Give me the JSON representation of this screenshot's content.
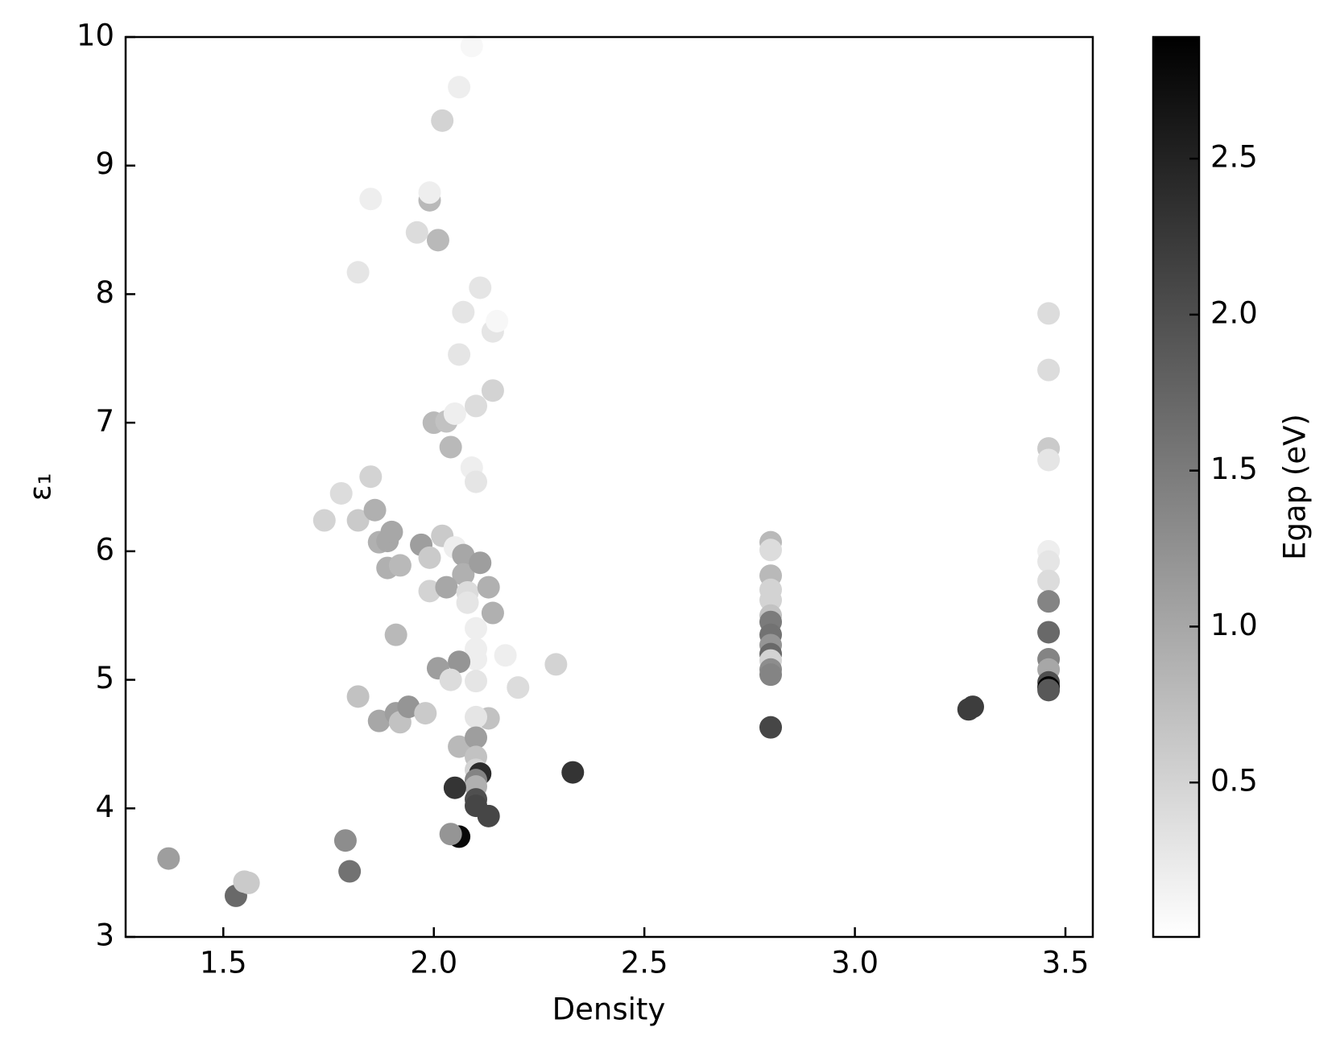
{
  "chart_data": {
    "type": "scatter",
    "xlabel": "Density",
    "ylabel": "ε₁",
    "colorbar_label": "Egap (eV)",
    "xlim": [
      1.268,
      3.565
    ],
    "ylim": [
      3,
      10
    ],
    "xticks": [
      1.5,
      {
        "value": 2,
        "label": "2.0"
      },
      2.5,
      {
        "value": 3,
        "label": "3.0"
      },
      3.5
    ],
    "yticks": [
      3,
      4,
      5,
      6,
      7,
      8,
      9,
      10
    ],
    "clim": [
      0.005,
      2.89
    ],
    "cticks": [
      0.5,
      {
        "value": 1,
        "label": "1.0"
      },
      1.5,
      {
        "value": 2,
        "label": "2.0"
      },
      2.5
    ],
    "colormap": "gray_r",
    "x": [
      1.37,
      1.53,
      1.55,
      1.56,
      1.79,
      1.8,
      1.74,
      1.78,
      1.82,
      1.82,
      1.85,
      1.85,
      1.86,
      1.87,
      1.89,
      1.9,
      1.89,
      1.92,
      1.91,
      1.82,
      1.87,
      1.91,
      1.92,
      1.94,
      1.97,
      1.99,
      1.96,
      1.99,
      1.99,
      2.01,
      2.02,
      2.06,
      2.09,
      2.0,
      2.03,
      2.05,
      2.04,
      2.06,
      2.07,
      2.1,
      2.11,
      2.14,
      2.15,
      2.14,
      2.09,
      2.1,
      2.02,
      2.05,
      2.07,
      2.07,
      2.11,
      1.99,
      2.03,
      2.08,
      2.08,
      2.13,
      2.14,
      2.1,
      2.1,
      2.1,
      2.17,
      2.06,
      2.01,
      2.04,
      2.1,
      2.2,
      2.29,
      1.98,
      2.13,
      2.1,
      2.06,
      2.1,
      2.1,
      2.1,
      2.11,
      2.1,
      2.1,
      2.1,
      2.1,
      2.05,
      2.13,
      2.06,
      2.04,
      2.33,
      2.8,
      2.8,
      2.8,
      2.8,
      2.8,
      2.8,
      2.8,
      2.8,
      2.8,
      2.8,
      2.8,
      2.8,
      2.8,
      2.8,
      3.27,
      3.28,
      3.46,
      3.46,
      3.46,
      3.46,
      3.46,
      3.46,
      3.46,
      3.46,
      3.46,
      3.46,
      3.46,
      3.46,
      3.46,
      3.46
    ],
    "values": [
      3.61,
      3.32,
      3.43,
      3.42,
      3.75,
      3.51,
      6.24,
      6.45,
      6.24,
      8.17,
      8.74,
      6.58,
      6.32,
      6.07,
      6.08,
      6.15,
      5.87,
      5.89,
      5.35,
      4.87,
      4.68,
      4.74,
      4.67,
      4.79,
      6.05,
      5.95,
      8.48,
      8.73,
      8.79,
      8.42,
      9.35,
      9.61,
      9.93,
      7.0,
      7.01,
      7.07,
      6.81,
      7.53,
      7.86,
      7.13,
      8.05,
      7.71,
      7.79,
      7.25,
      6.65,
      6.54,
      6.12,
      6.03,
      5.97,
      5.82,
      5.91,
      5.69,
      5.72,
      5.68,
      5.6,
      5.72,
      5.52,
      5.4,
      5.24,
      5.16,
      5.19,
      5.14,
      5.09,
      5.0,
      4.99,
      4.94,
      5.12,
      4.74,
      4.7,
      4.71,
      4.48,
      4.55,
      4.4,
      4.3,
      4.27,
      4.22,
      4.17,
      4.07,
      4.02,
      4.16,
      3.94,
      3.78,
      3.8,
      4.28,
      6.07,
      6.01,
      5.81,
      5.7,
      5.62,
      5.5,
      5.45,
      5.35,
      5.27,
      5.2,
      5.15,
      5.08,
      5.04,
      4.63,
      4.77,
      4.79,
      7.85,
      7.41,
      6.8,
      6.71,
      6.0,
      5.92,
      5.77,
      5.61,
      5.37,
      5.16,
      5.08,
      4.98,
      4.94,
      4.92
    ],
    "c": [
      1.1,
      1.7,
      0.6,
      0.6,
      1.3,
      1.6,
      0.5,
      0.4,
      0.6,
      0.3,
      0.2,
      0.5,
      0.9,
      0.9,
      1.0,
      1.0,
      0.9,
      0.8,
      0.8,
      0.7,
      1.0,
      1.1,
      0.7,
      1.2,
      1.1,
      0.6,
      0.4,
      0.8,
      0.2,
      0.8,
      0.5,
      0.2,
      0.1,
      0.8,
      0.7,
      0.2,
      0.8,
      0.3,
      0.3,
      0.4,
      0.3,
      0.3,
      0.1,
      0.5,
      0.2,
      0.3,
      0.6,
      0.2,
      1.0,
      0.9,
      1.1,
      0.5,
      1.0,
      0.4,
      0.3,
      0.9,
      0.9,
      0.2,
      0.2,
      0.2,
      0.2,
      1.2,
      1.1,
      0.4,
      0.3,
      0.4,
      0.5,
      0.6,
      0.7,
      0.3,
      0.8,
      1.1,
      0.7,
      0.5,
      2.4,
      1.4,
      0.9,
      2.0,
      2.1,
      2.3,
      2.1,
      2.8,
      1.2,
      2.3,
      0.8,
      0.4,
      0.8,
      0.5,
      0.5,
      0.7,
      1.5,
      1.6,
      1.2,
      1.7,
      0.5,
      1.3,
      1.4,
      2.1,
      2.2,
      2.2,
      0.4,
      0.4,
      0.6,
      0.3,
      0.2,
      0.3,
      0.4,
      1.4,
      1.7,
      1.4,
      1.0,
      2.0,
      2.9,
      1.9
    ]
  }
}
